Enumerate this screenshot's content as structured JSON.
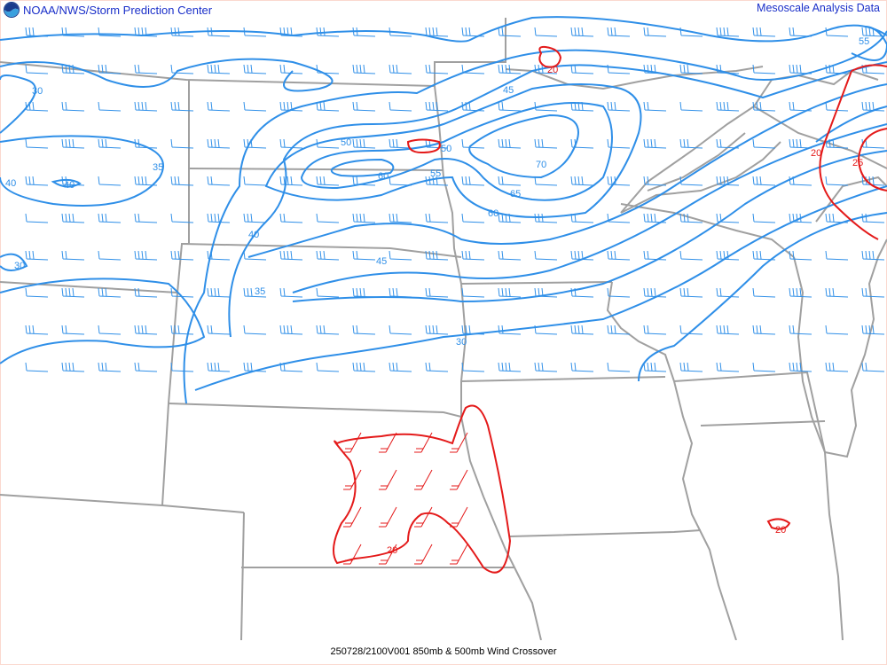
{
  "header": {
    "left_title": "NOAA/NWS/Storm Prediction Center",
    "right_title": "Mesoscale Analysis Data",
    "logo": "noaa-logo"
  },
  "footer": {
    "caption": "250728/2100V001 850mb & 500mb Wind Crossover"
  },
  "colors": {
    "title_text": "#1a2fc9",
    "wind_contours": "#2f8fe8",
    "crossover_contours": "#e41a1a",
    "borders": "#a0a0a0"
  },
  "map": {
    "blue_contour_labels": [
      "55",
      "30",
      "35",
      "40",
      "40",
      "30",
      "45",
      "50",
      "60",
      "55",
      "50",
      "70",
      "65",
      "60",
      "45",
      "40",
      "35",
      "30"
    ],
    "red_contour_labels": [
      "20",
      "20",
      "25",
      "20",
      "20"
    ]
  }
}
